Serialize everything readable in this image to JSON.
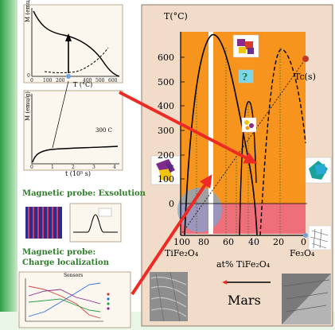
{
  "left_panels": {
    "top_plot": {
      "ylabel": "M (emu/g)",
      "xlabel": "T (°C)",
      "ticks_y": [
        "0"
      ],
      "ticks_x": [
        "0",
        "100",
        "200",
        "300",
        "400",
        "500",
        "600"
      ]
    },
    "middle_plot": {
      "ylabel": "M (emu/g)",
      "xlabel": "t (10⁵ s)",
      "annotation": "300 C",
      "ticks_x": [
        "0",
        "1",
        "2",
        "3",
        "4"
      ]
    },
    "exsolution_title": "Magnetic probe: Exsolution",
    "charge_title_line1": "Magnetic probe:",
    "charge_title_line2": "Charge localization",
    "bottom_plot": {
      "title": "Sensors"
    }
  },
  "phase_diagram": {
    "y_axis_label": "T(°C)",
    "y_ticks": [
      "600",
      "500",
      "400",
      "300",
      "200",
      "100",
      "0"
    ],
    "x_ticks": [
      "100",
      "80",
      "60",
      "40",
      "20",
      "0"
    ],
    "x_axis_label": "at% TiFe₂O₄",
    "left_end_label": "TiFe₂O₄",
    "right_end_label": "Fe₃O₄",
    "tc_label": "Tc(s)",
    "question_mark": "?",
    "mars_label": "Mars",
    "colors": {
      "frame": "#f1dcc9",
      "orange": "#f7941d",
      "pink": "#ee6f7a",
      "arrow": "#ee2a24",
      "green_bg": "#3aaa49"
    }
  }
}
